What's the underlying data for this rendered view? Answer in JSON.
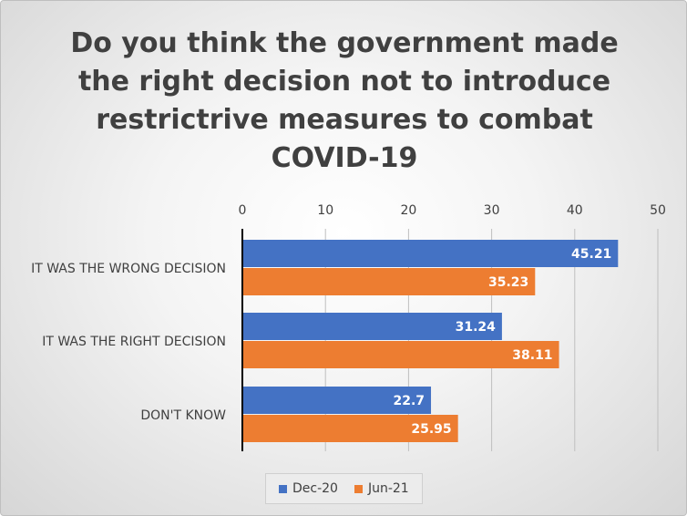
{
  "chart_data": {
    "type": "bar",
    "orientation": "horizontal",
    "title": "Do you think the government made the right decision not to introduce restrictrive measures to combat COVID-19",
    "categories": [
      "IT WAS THE WRONG DECISION",
      "IT WAS THE RIGHT DECISION",
      "DON'T KNOW"
    ],
    "series": [
      {
        "name": "Dec-20",
        "values": [
          45.21,
          31.24,
          22.7
        ],
        "color": "#4472c4"
      },
      {
        "name": "Jun-21",
        "values": [
          35.23,
          38.11,
          25.95
        ],
        "color": "#ed7d31"
      }
    ],
    "xlim": [
      0,
      50
    ],
    "x_ticks": [
      0,
      10,
      20,
      30,
      40,
      50
    ],
    "x_axis_position": "top",
    "grid": true,
    "legend": "bottom",
    "data_labels": true,
    "xlabel": "",
    "ylabel": ""
  }
}
